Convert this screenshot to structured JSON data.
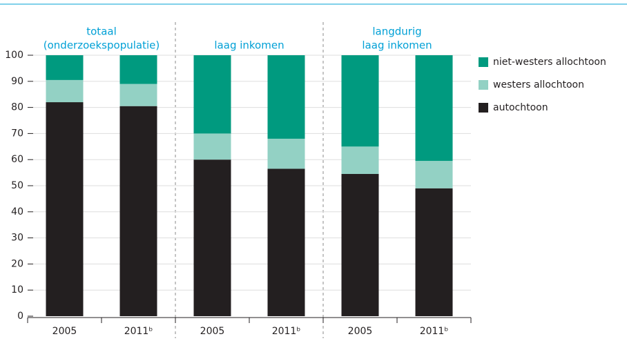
{
  "chart_data": {
    "type": "stacked-bar",
    "groups": [
      {
        "lines": [
          "totaal",
          "(onderzoekspopulatie)"
        ]
      },
      {
        "lines": [
          "laag inkomen"
        ]
      },
      {
        "lines": [
          "langdurig",
          "laag inkomen"
        ]
      }
    ],
    "categories": [
      "2005",
      "2011ᵇ",
      "2005",
      "2011ᵇ",
      "2005",
      "2011ᵇ"
    ],
    "series": [
      {
        "name": "autochtoon",
        "color": "#231f20",
        "values": [
          82,
          80.5,
          60,
          56.5,
          54.5,
          49
        ]
      },
      {
        "name": "westers allochtoon",
        "color": "#93d1c4",
        "values": [
          8.5,
          8.5,
          10,
          11.5,
          10.5,
          10.5
        ]
      },
      {
        "name": "niet-westers allochtoon",
        "color": "#009a7f",
        "values": [
          9.5,
          11,
          30,
          32,
          35,
          40.5
        ]
      }
    ],
    "ylim": [
      0,
      100
    ],
    "yticks": [
      0,
      10,
      20,
      30,
      40,
      50,
      60,
      70,
      80,
      90,
      100
    ],
    "grid": true
  }
}
